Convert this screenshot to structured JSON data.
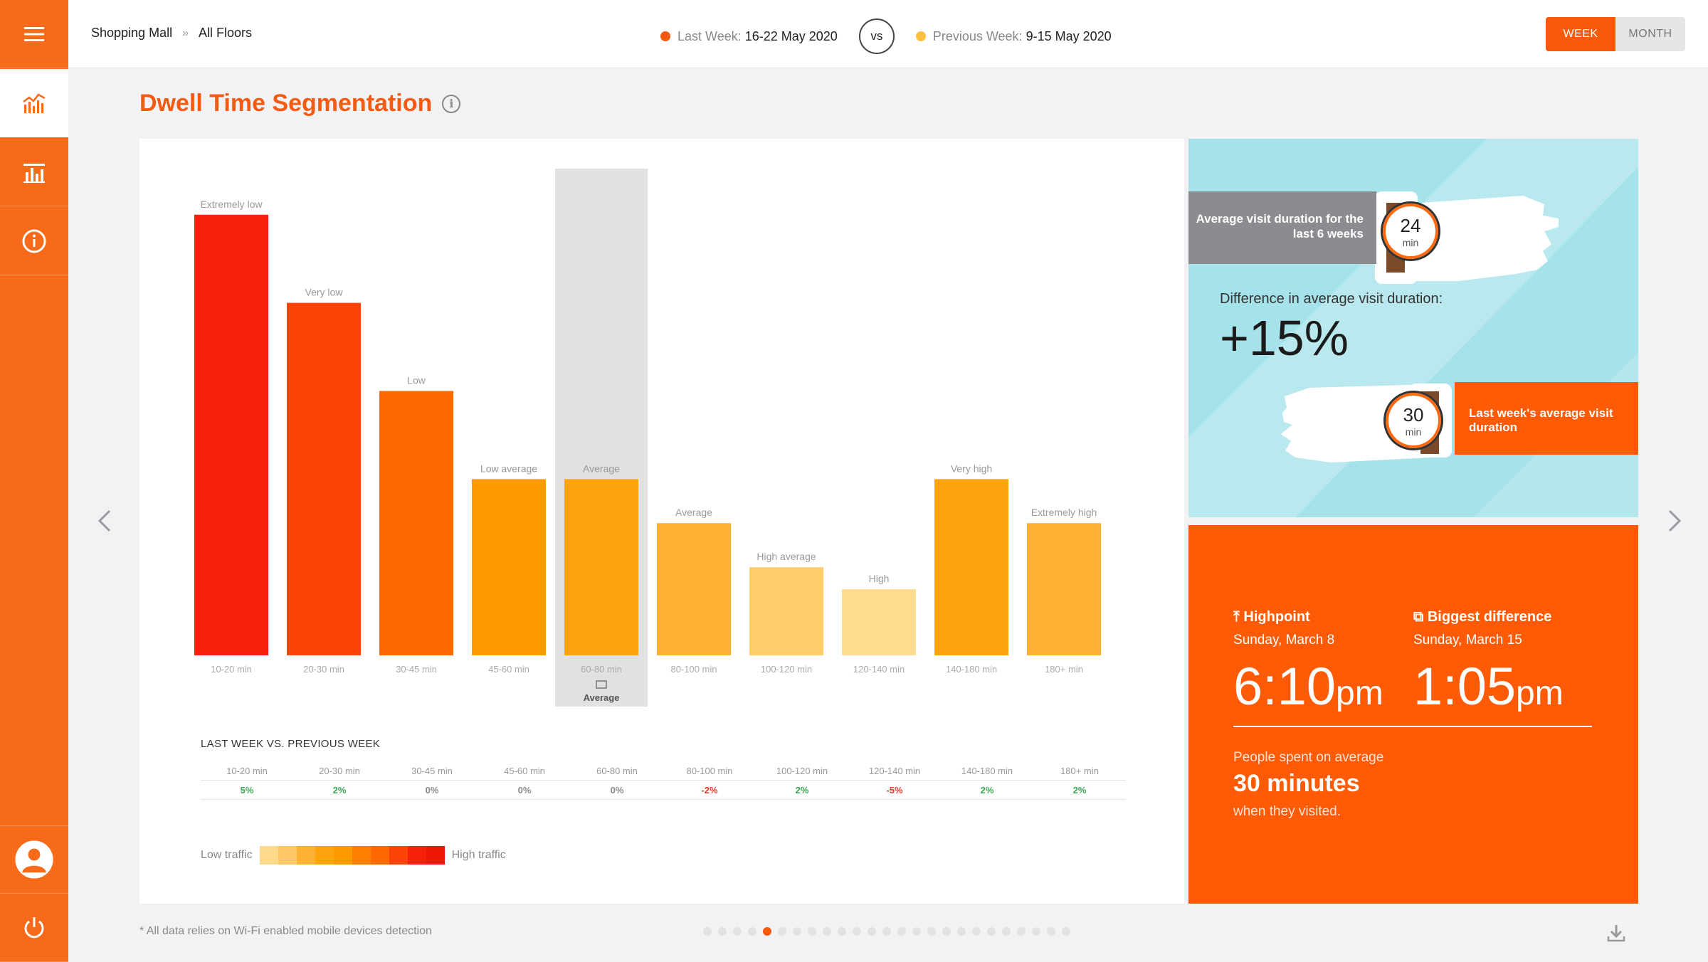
{
  "header": {
    "breadcrumb": [
      "Shopping Mall",
      "All Floors"
    ],
    "breadcrumb_separator": "»",
    "last_week_label": "Last Week:",
    "last_week_range": "16-22 May 2020",
    "vs": "vs",
    "prev_week_label": "Previous Week:",
    "prev_week_range": "9-15 May 2020",
    "toggle": {
      "week": "WEEK",
      "month": "MONTH",
      "selected": "WEEK"
    }
  },
  "sidebar": {
    "items": [
      {
        "name": "menu",
        "icon": "hamburger-icon"
      },
      {
        "name": "analytics",
        "icon": "line-chart-icon",
        "active": true
      },
      {
        "name": "reports",
        "icon": "bar-chart-icon"
      },
      {
        "name": "info",
        "icon": "info-icon"
      }
    ],
    "bottom": [
      {
        "name": "profile",
        "icon": "user-icon"
      },
      {
        "name": "logout",
        "icon": "power-icon"
      }
    ]
  },
  "title": "Dwell Time Segmentation",
  "chart_data": {
    "type": "bar",
    "categories": [
      "10-20 min",
      "20-30 min",
      "30-45 min",
      "45-60 min",
      "60-80 min",
      "80-100 min",
      "100-120 min",
      "120-140 min",
      "140-180 min",
      "180+ min"
    ],
    "values": [
      10,
      8,
      6,
      4,
      4,
      3,
      2,
      1.5,
      4,
      3
    ],
    "bar_labels": [
      "Extremely low",
      "Very low",
      "Low",
      "Low average",
      "Average",
      "Average",
      "High average",
      "High",
      "Very high",
      "Extremely high"
    ],
    "colors": [
      "#f5210b",
      "#fb4207",
      "#ff6a00",
      "#ff9a00",
      "#ffa40d",
      "#ffb133",
      "#ffcd6a",
      "#ffdc8f",
      "#ffa40d",
      "#ffb133"
    ],
    "highlight_index": 4,
    "highlight_caption": "Average",
    "ylim": [
      0,
      11
    ]
  },
  "comparison": {
    "title": "LAST WEEK VS. PREVIOUS WEEK",
    "headers": [
      "10-20 min",
      "20-30 min",
      "30-45 min",
      "45-60 min",
      "60-80 min",
      "80-100 min",
      "100-120 min",
      "120-140 min",
      "140-180 min",
      "180+ min"
    ],
    "values": [
      "5%",
      "2%",
      "0%",
      "0%",
      "0%",
      "-2%",
      "2%",
      "-5%",
      "2%",
      "2%"
    ]
  },
  "traffic_legend": {
    "low": "Low traffic",
    "high": "High traffic",
    "colors": [
      "#ffd98a",
      "#ffc766",
      "#ffb133",
      "#ffa40d",
      "#ff9a00",
      "#ff7f00",
      "#ff6a00",
      "#fb4207",
      "#f5210b",
      "#ee1808"
    ]
  },
  "duration_panel": {
    "avg_6_weeks_label": "Average visit duration for the last 6 weeks",
    "avg_6_weeks_value": "24",
    "avg_6_weeks_unit": "min",
    "difference_label": "Difference in average visit duration:",
    "difference_value": "+15%",
    "last_week_label": "Last week's average visit duration",
    "last_week_value": "30",
    "last_week_unit": "min"
  },
  "highlights": {
    "highpoint_label": "Highpoint",
    "highpoint_date": "Sunday, March 8",
    "highpoint_time": "6:10",
    "highpoint_suffix": "pm",
    "biggest_label": "Biggest difference",
    "biggest_date": "Sunday, March 15",
    "biggest_time": "1:05",
    "biggest_suffix": "pm",
    "spent_prefix": "People spent on average",
    "spent_value": "30 minutes",
    "spent_suffix": "when they visited."
  },
  "footer": {
    "note": "* All data relies on Wi-Fi enabled mobile devices detection",
    "page_count": 25,
    "current_page": 5
  }
}
